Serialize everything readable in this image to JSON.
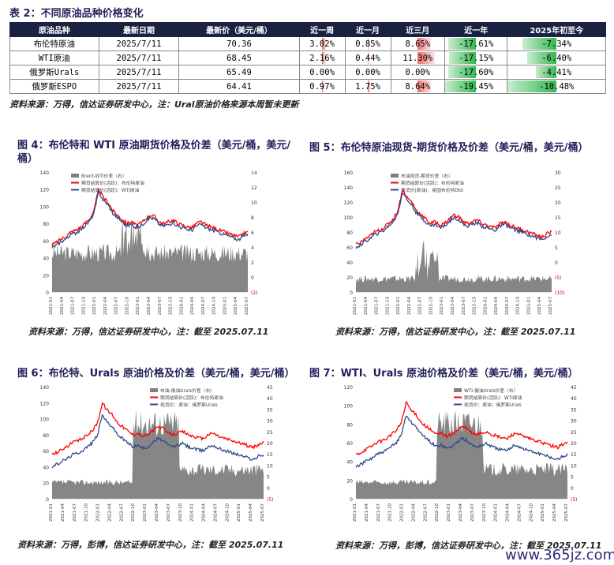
{
  "table_title": "表 2：不同原油品种价格变化",
  "table": {
    "headers": [
      "原油品种",
      "最新日期",
      "最新价（美元/桶）",
      "近一周",
      "近一月",
      "近三月",
      "近一年",
      "2025年初至今"
    ],
    "rows": [
      [
        "布伦特原油",
        "2025/7/11",
        "70.36",
        "3.02%",
        "0.85%",
        "8.65%",
        "-17.61%",
        "-7.34%"
      ],
      [
        "WTI原油",
        "2025/7/11",
        "68.45",
        "2.16%",
        "0.44%",
        "11.30%",
        "-17.15%",
        "-6.40%"
      ],
      [
        "俄罗斯Urals",
        "2025/7/11",
        "65.49",
        "0.00%",
        "0.00%",
        "0.00%",
        "-17.60%",
        "-4.41%"
      ],
      [
        "俄罗斯ESPO",
        "2025/7/11",
        "64.41",
        "0.97%",
        "1.75%",
        "8.64%",
        "-19.45%",
        "-10.48%"
      ]
    ],
    "bars": [
      [
        0.18,
        0.05,
        0.5,
        0.9,
        0.7
      ],
      [
        0.13,
        0.03,
        0.65,
        0.88,
        0.6
      ],
      [
        0,
        0,
        0,
        0.9,
        0.42
      ],
      [
        0.06,
        0.1,
        0.5,
        1.0,
        1.0
      ]
    ]
  },
  "table_source": "资料来源：万得，信达证券研发中心，注：Ural原油价格来源本周暂未更新",
  "figures": [
    {
      "title": "图 4：布伦特和 WTI 原油期货价格及价差（美元/桶，美元/桶）",
      "source": "资料来源：万得，信达证券研发中心，注：截至 2025.07.11",
      "legend": [
        "Brent-WTI价差（右）",
        "期货结算价(活跃)：布伦特原油",
        "期货结算价(活跃)：WTI原油"
      ],
      "left_ticks": [
        "140",
        "120",
        "100",
        "80",
        "60",
        "40",
        "20",
        "0"
      ],
      "right_ticks": [
        "14",
        "12",
        "10",
        "8",
        "6",
        "4",
        "2",
        "0",
        "(2)"
      ],
      "x_ticks": [
        "2021-01",
        "2021-04",
        "2021-07",
        "2021-10",
        "2022-01",
        "2022-04",
        "2022-07",
        "2022-10",
        "2023-01",
        "2023-04",
        "2023-07",
        "2023-10",
        "2024-01",
        "2024-04",
        "2024-07",
        "2024-10",
        "2025-01",
        "2025-04",
        "2025-07"
      ]
    },
    {
      "title": "图 5：布伦特原油现货-期货价格及价差（美元/桶，美元/桶）",
      "source": "资料来源：万得，信达证券研发中心，注：截至 2025.07.11",
      "legend": [
        "布油现货-期货价差（右）",
        "期货结算价(活跃)：布伦特原油",
        "现货价(原油)：英国布伦特Dtd"
      ],
      "left_ticks": [
        "160",
        "140",
        "120",
        "100",
        "80",
        "60",
        "40",
        "20",
        "0"
      ],
      "right_ticks": [
        "30",
        "25",
        "20",
        "15",
        "10",
        "5",
        "0",
        "(5)",
        "(10)"
      ],
      "x_ticks": [
        "2021-01",
        "2021-04",
        "2021-07",
        "2021-10",
        "2022-01",
        "2022-04",
        "2022-07",
        "2022-10",
        "2023-01",
        "2023-04",
        "2023-07",
        "2023-10",
        "2024-01",
        "2024-04",
        "2024-07",
        "2024-10",
        "2025-01",
        "2025-04",
        "2025-07"
      ]
    },
    {
      "title": "图 6：布伦特、Urals 原油价格及价差（美元/桶，美元/桶）",
      "source": "资料来源：万得，彭博，信达证券研发中心，注：截至 2025.07.11",
      "legend": [
        "布油-俄油Urals价差（右）",
        "期货结算价(活跃)：布伦特原油",
        "现货价：原油：俄罗斯Urals"
      ],
      "left_ticks": [
        "140",
        "120",
        "100",
        "80",
        "60",
        "40",
        "20",
        "0"
      ],
      "right_ticks": [
        "45",
        "40",
        "35",
        "30",
        "25",
        "20",
        "15",
        "10",
        "5",
        "0",
        "(5)"
      ],
      "x_ticks": [
        "2021-01",
        "2021-04",
        "2021-07",
        "2021-10",
        "2022-01",
        "2022-04",
        "2022-07",
        "2022-10",
        "2023-01",
        "2023-04",
        "2023-07",
        "2023-10",
        "2024-01",
        "2024-04",
        "2024-07",
        "2024-10",
        "2025-01",
        "2025-04",
        "2025-07"
      ]
    },
    {
      "title": "图 7：WTI、Urals 原油价格及价差（美元/桶，美元/桶）",
      "source": "资料来源：万得，彭博，信达证券研发中心，注：截至 2025.07.11",
      "legend": [
        "WTI-俄油Urals价差（右）",
        "期货结算价(活跃)：WTI原油",
        "现货价：原油：俄罗斯Urals"
      ],
      "left_ticks": [
        "120",
        "100",
        "80",
        "60",
        "40",
        "20",
        "0"
      ],
      "right_ticks": [
        "45",
        "40",
        "35",
        "30",
        "25",
        "20",
        "15",
        "10",
        "5",
        "0",
        "(5)"
      ],
      "x_ticks": [
        "2021-01",
        "2021-04",
        "2021-07",
        "2021-10",
        "2022-01",
        "2022-04",
        "2022-07",
        "2022-10",
        "2023-01",
        "2023-04",
        "2023-07",
        "2023-10",
        "2024-01",
        "2024-04",
        "2024-07",
        "2024-10",
        "2025-01",
        "2025-04",
        "2025-07"
      ]
    }
  ],
  "colors": {
    "red": "#ff0000",
    "blue": "#2e4a8c",
    "gray": "#7f7f7f"
  },
  "watermark": "www.365jz.com"
}
